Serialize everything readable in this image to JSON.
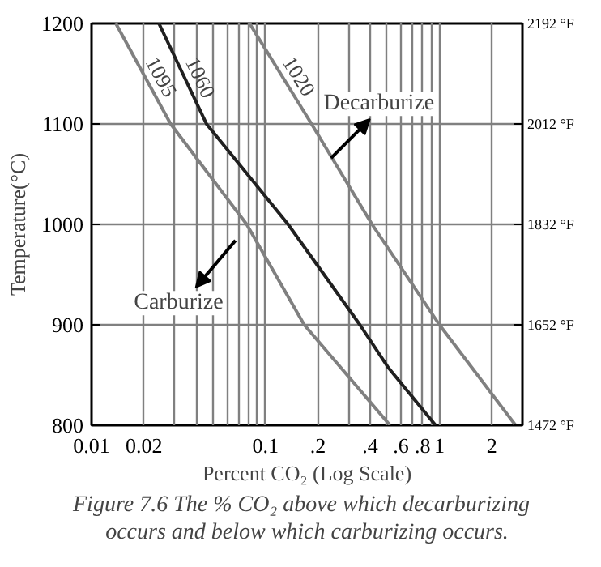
{
  "chart_data": {
    "type": "line",
    "xlabel": "Percent CO₂ (Log Scale)",
    "ylabel": "Temperature(°C)",
    "log": "x",
    "grid": true,
    "marker": "none",
    "line_style": "solid",
    "y2lim": [
      1472,
      2192
    ],
    "y2ticks": [
      {
        "value": 1472,
        "label": "1472 °F"
      },
      {
        "value": 1652,
        "label": "1652 °F"
      },
      {
        "value": 1832,
        "label": "1832 °F"
      },
      {
        "value": 2012,
        "label": "2012 °F"
      },
      {
        "value": 2192,
        "label": "2192 °F"
      }
    ],
    "xlim": [
      0.01,
      3
    ],
    "ylim": [
      800,
      1200
    ],
    "xticks": [
      0.01,
      0.02,
      {
        "value": 0.03,
        "label": null
      },
      {
        "value": 0.04,
        "label": null
      },
      {
        "value": 0.05,
        "label": null
      },
      {
        "value": 0.06,
        "label": null
      },
      {
        "value": 0.07,
        "label": null
      },
      {
        "value": 0.08,
        "label": null
      },
      {
        "value": 0.09,
        "label": null
      },
      0.1,
      {
        "value": 0.2,
        "label": ".2"
      },
      {
        "value": 0.3,
        "label": null
      },
      {
        "value": 0.4,
        "label": ".4"
      },
      {
        "value": 0.5,
        "label": null
      },
      {
        "value": 0.6,
        "label": ".6"
      },
      {
        "value": 0.7,
        "label": null
      },
      {
        "value": 0.8,
        "label": ".8"
      },
      {
        "value": 0.9,
        "label": null
      },
      1,
      2
    ],
    "yticks": [
      800,
      900,
      1000,
      1100,
      1200
    ],
    "series": [
      {
        "name": "1095",
        "color": "#808080",
        "x": [
          0.0138,
          0.0285,
          0.078,
          0.167,
          0.52
        ],
        "values": [
          1200,
          1100,
          1000,
          900,
          800
        ]
      },
      {
        "name": "1060",
        "color": "#202020",
        "x": [
          0.0244,
          0.0458,
          0.135,
          0.349,
          0.51,
          0.95
        ],
        "values": [
          1200,
          1100,
          1000,
          900,
          857,
          800
        ]
      },
      {
        "name": "1020",
        "color": "#808080",
        "x": [
          0.081,
          0.184,
          0.41,
          1.0,
          2.74
        ],
        "values": [
          1200,
          1100,
          1000,
          900,
          800
        ]
      }
    ],
    "annotations": [
      "Decarburize",
      "Carburize",
      "Figure 7.6   The % CO₂ above which decarburizing occurs and below which carburizing occurs."
    ]
  }
}
